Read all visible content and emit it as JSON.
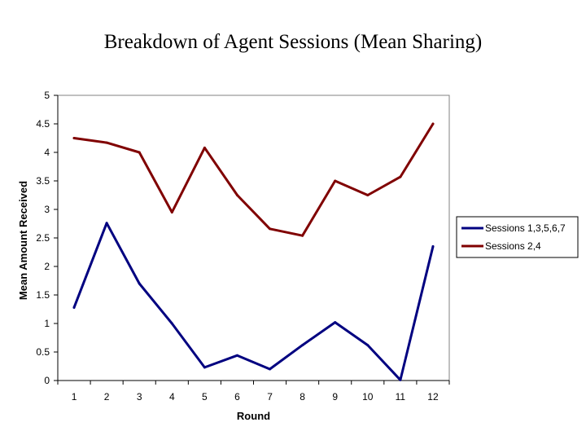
{
  "chart_data": {
    "type": "line",
    "title": "Breakdown of Agent Sessions (Mean Sharing)",
    "xlabel": "Round",
    "ylabel": "Mean Amount Received",
    "categories": [
      "1",
      "2",
      "3",
      "4",
      "5",
      "6",
      "7",
      "8",
      "9",
      "10",
      "11",
      "12"
    ],
    "ylim": [
      0,
      5
    ],
    "yticks": [
      "0",
      "0.5",
      "1",
      "1.5",
      "2",
      "2.5",
      "3",
      "3.5",
      "4",
      "4.5",
      "5"
    ],
    "grid": false,
    "legend_position": "right",
    "series": [
      {
        "name": "Sessions 1,3,5,6,7",
        "color": "#000080",
        "values": [
          1.28,
          2.76,
          1.7,
          1.0,
          0.23,
          0.44,
          0.2,
          0.62,
          1.02,
          0.62,
          0.01,
          2.35
        ]
      },
      {
        "name": "Sessions 2,4",
        "color": "#800000",
        "values": [
          4.25,
          4.17,
          4.0,
          2.95,
          4.08,
          3.25,
          2.66,
          2.54,
          3.5,
          3.25,
          3.57,
          4.5
        ]
      }
    ]
  }
}
